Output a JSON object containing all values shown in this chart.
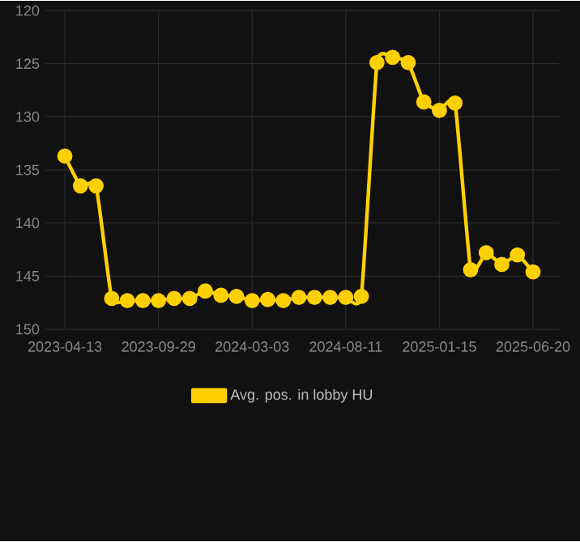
{
  "chart_data": {
    "type": "line",
    "categories": [
      "2023-04-13",
      null,
      null,
      null,
      null,
      null,
      "2023-09-29",
      null,
      null,
      null,
      null,
      null,
      "2024-03-03",
      null,
      null,
      null,
      null,
      null,
      "2024-08-11",
      null,
      null,
      null,
      null,
      null,
      "2025-01-15",
      null,
      null,
      null,
      null,
      null,
      "2025-06-20"
    ],
    "series": [
      {
        "name": "Avg. pos. in lobby HU",
        "color": "#ffd000",
        "values": [
          133.7,
          136.5,
          136.5,
          147.1,
          147.3,
          147.3,
          147.3,
          147.1,
          147.1,
          146.4,
          146.8,
          146.9,
          147.3,
          147.2,
          147.3,
          147.0,
          147.0,
          147.0,
          147.0,
          146.9,
          124.9,
          124.4,
          124.9,
          128.6,
          129.4,
          128.7,
          144.4,
          142.8,
          143.9,
          143.0,
          144.6
        ]
      }
    ],
    "ylim": [
      150,
      120
    ],
    "yticks": [
      120,
      125,
      130,
      135,
      140,
      145,
      150
    ],
    "grid": true,
    "legend": "bottom",
    "marker": "circle",
    "line_style": "solid"
  }
}
